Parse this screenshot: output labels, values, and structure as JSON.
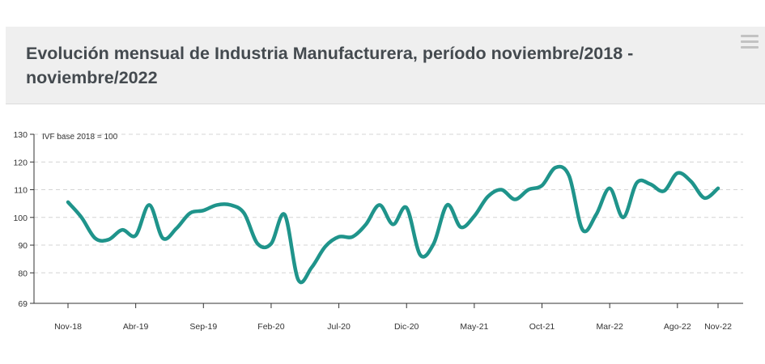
{
  "header": {
    "title": "Evolución mensual de Industria Manufacturera, período noviembre/2018 - noviembre/2022",
    "menu_icon": "hamburger-menu-icon"
  },
  "chart_data": {
    "type": "line",
    "title": "Evolución mensual de Industria Manufacturera, período noviembre/2018 - noviembre/2022",
    "unit_label": "IVF base 2018 = 100",
    "xlabel": "",
    "ylabel": "",
    "ylim": [
      69,
      130
    ],
    "yticks": [
      69,
      80,
      90,
      100,
      110,
      120,
      130
    ],
    "grid": true,
    "color": "#1f948b",
    "x": [
      "Nov-18",
      "Dic-18",
      "Ene-19",
      "Feb-19",
      "Mar-19",
      "Abr-19",
      "May-19",
      "Jun-19",
      "Jul-19",
      "Ago-19",
      "Sep-19",
      "Oct-19",
      "Nov-19",
      "Dic-19",
      "Ene-20",
      "Feb-20",
      "Mar-20",
      "Abr-20",
      "May-20",
      "Jun-20",
      "Jul-20",
      "Ago-20",
      "Sep-20",
      "Oct-20",
      "Nov-20",
      "Dic-20",
      "Ene-21",
      "Feb-21",
      "Mar-21",
      "Abr-21",
      "May-21",
      "Jun-21",
      "Jul-21",
      "Ago-21",
      "Sep-21",
      "Oct-21",
      "Nov-21",
      "Dic-21",
      "Ene-22",
      "Feb-22",
      "Mar-22",
      "Abr-22",
      "May-22",
      "Jun-22",
      "Jul-22",
      "Ago-22",
      "Sep-22",
      "Oct-22",
      "Nov-22"
    ],
    "xtick_labels": [
      "Nov-18",
      "Abr-19",
      "Sep-19",
      "Feb-20",
      "Jul-20",
      "Dic-20",
      "May-21",
      "Oct-21",
      "Mar-22",
      "Ago-22",
      "Nov-22"
    ],
    "xtick_indices": [
      0,
      5,
      10,
      15,
      20,
      25,
      30,
      35,
      40,
      45,
      48
    ],
    "series": [
      {
        "values": [
          105.5,
          100.0,
          92.5,
          92.0,
          95.5,
          93.5,
          104.5,
          92.5,
          96.0,
          101.5,
          102.5,
          104.5,
          104.5,
          101.5,
          90.5,
          90.5,
          101.0,
          77.5,
          82.0,
          89.5,
          93.0,
          93.0,
          97.5,
          104.5,
          97.5,
          103.5,
          86.5,
          90.5,
          104.5,
          96.5,
          100.5,
          107.5,
          110.0,
          106.5,
          110.0,
          111.5,
          118.0,
          115.0,
          95.5,
          101.0,
          110.5,
          100.0,
          112.5,
          112.0,
          109.5,
          116.0,
          113.0,
          107.0,
          110.5
        ]
      }
    ]
  }
}
